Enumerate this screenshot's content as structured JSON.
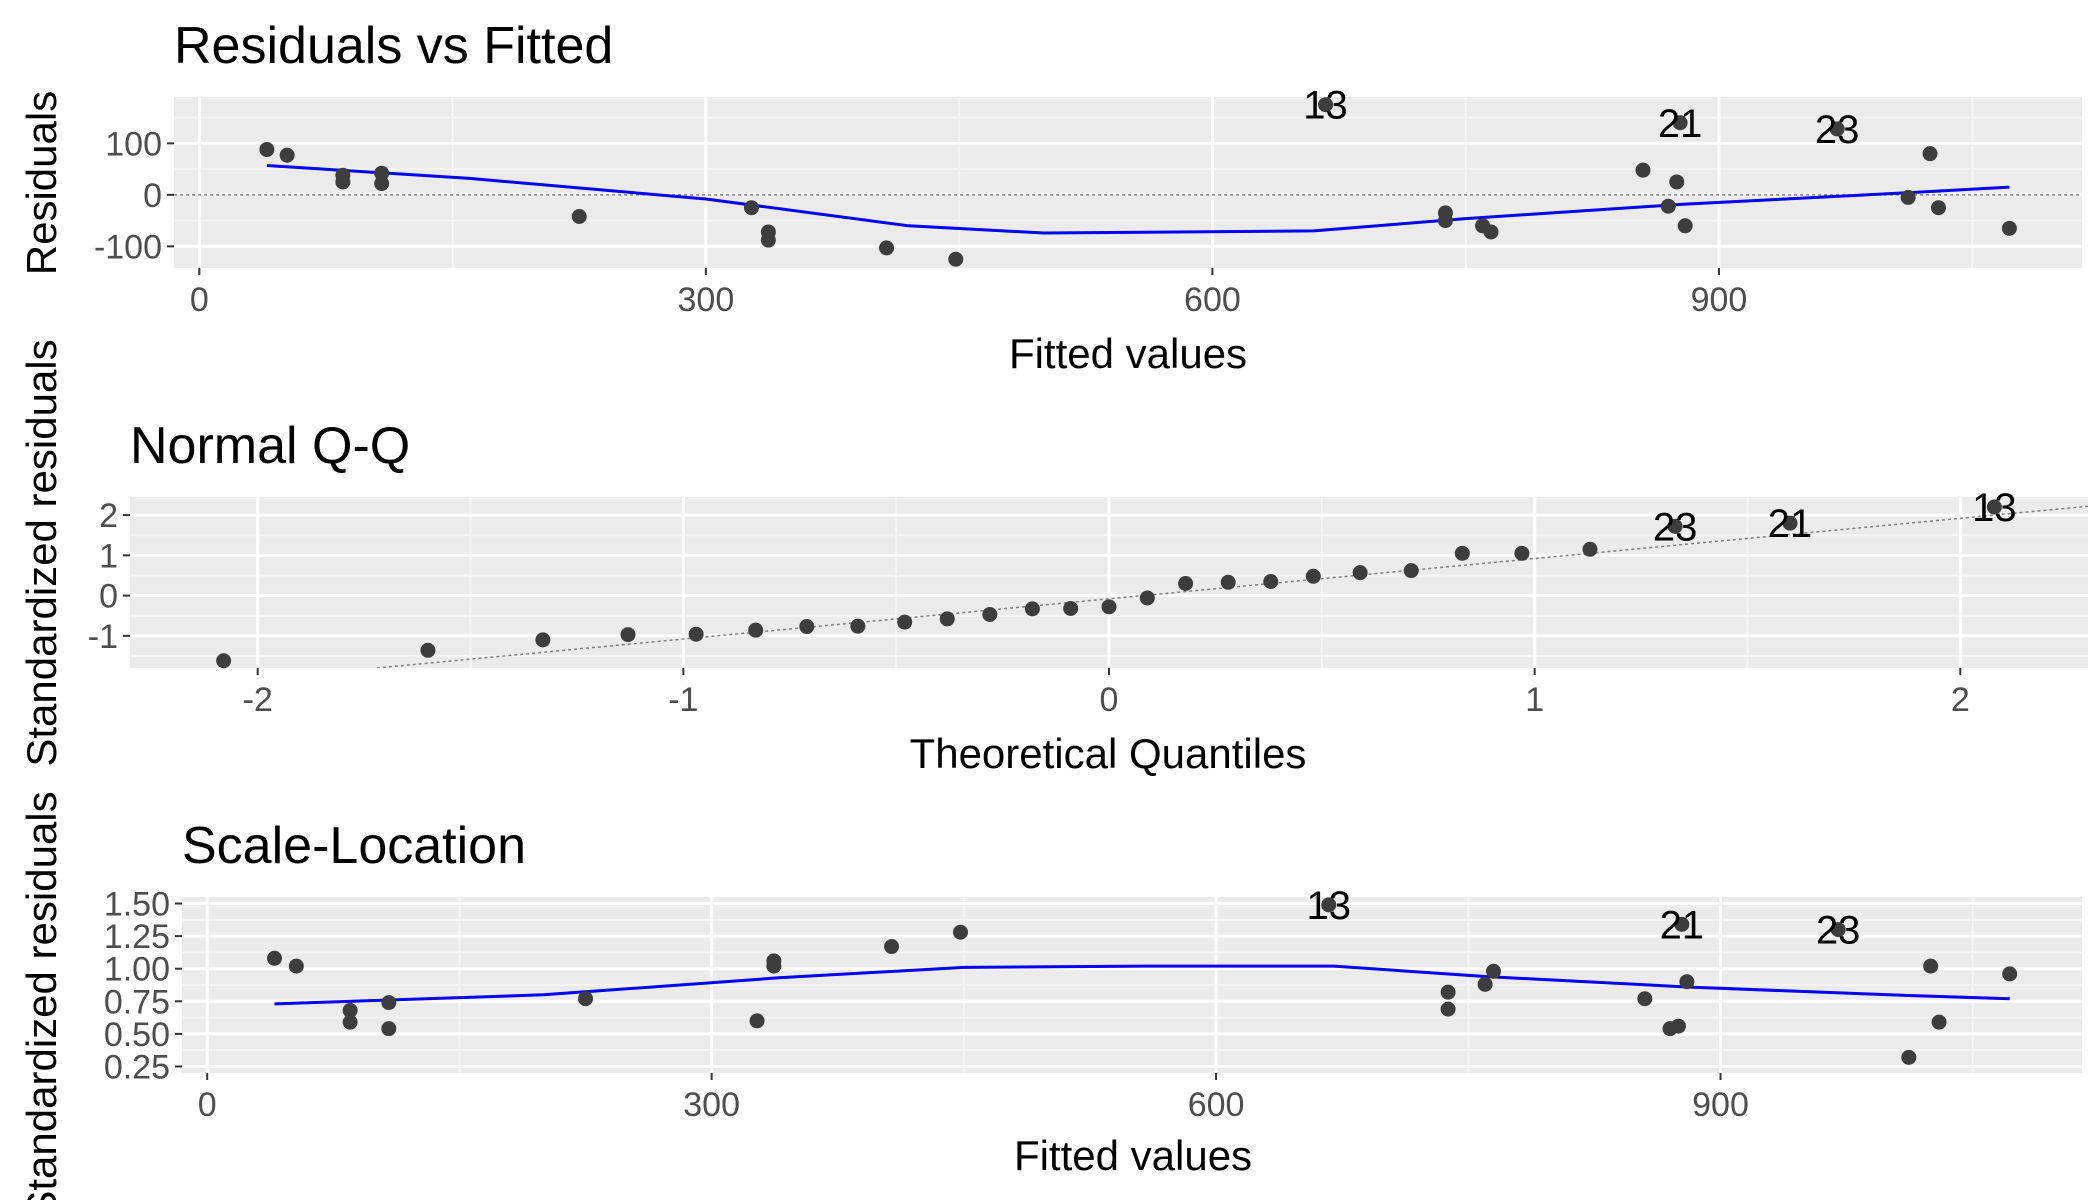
{
  "chart_data": [
    {
      "type": "scatter",
      "title": "Residuals vs Fitted",
      "xlabel": "Fitted values",
      "ylabel": "Residuals",
      "xlim": [
        -15,
        1115
      ],
      "ylim": [
        -142,
        190
      ],
      "x_ticks": [
        0,
        300,
        600,
        900
      ],
      "y_ticks": [
        -100,
        0,
        100
      ],
      "y_tick_labels": [
        "-100",
        "0",
        "100"
      ],
      "reference_line": {
        "type": "horizontal",
        "y": 0
      },
      "points": [
        {
          "x": 40,
          "y": 88
        },
        {
          "x": 52,
          "y": 77
        },
        {
          "x": 85,
          "y": 38
        },
        {
          "x": 85,
          "y": 25
        },
        {
          "x": 108,
          "y": 42
        },
        {
          "x": 108,
          "y": 22
        },
        {
          "x": 225,
          "y": -42
        },
        {
          "x": 327,
          "y": -25
        },
        {
          "x": 337,
          "y": -72
        },
        {
          "x": 337,
          "y": -88
        },
        {
          "x": 407,
          "y": -103
        },
        {
          "x": 448,
          "y": -125
        },
        {
          "x": 667,
          "y": 175
        },
        {
          "x": 738,
          "y": -35
        },
        {
          "x": 738,
          "y": -50
        },
        {
          "x": 760,
          "y": -60
        },
        {
          "x": 765,
          "y": -72
        },
        {
          "x": 855,
          "y": 48
        },
        {
          "x": 870,
          "y": -22
        },
        {
          "x": 875,
          "y": 25
        },
        {
          "x": 877,
          "y": 140
        },
        {
          "x": 880,
          "y": -60
        },
        {
          "x": 970,
          "y": 128
        },
        {
          "x": 1012,
          "y": -5
        },
        {
          "x": 1025,
          "y": 80
        },
        {
          "x": 1030,
          "y": -25
        },
        {
          "x": 1072,
          "y": -65
        }
      ],
      "smooth_line": [
        [
          40,
          57
        ],
        [
          160,
          32
        ],
        [
          300,
          -8
        ],
        [
          420,
          -60
        ],
        [
          500,
          -74
        ],
        [
          660,
          -70
        ],
        [
          750,
          -46
        ],
        [
          880,
          -18
        ],
        [
          1000,
          2
        ],
        [
          1072,
          15
        ]
      ],
      "labeled_points": [
        {
          "label": "13",
          "x": 667,
          "y": 175
        },
        {
          "label": "21",
          "x": 877,
          "y": 140
        },
        {
          "label": "23",
          "x": 970,
          "y": 128
        }
      ]
    },
    {
      "type": "scatter",
      "title": "Normal Q-Q",
      "xlabel": "Theoretical Quantiles",
      "ylabel": "Standardized residuals",
      "xlim": [
        -2.3,
        2.3
      ],
      "ylim": [
        -1.8,
        2.45
      ],
      "x_ticks": [
        -2,
        -1,
        0,
        1,
        2
      ],
      "x_tick_labels": [
        "-2",
        "-1",
        "0",
        "1",
        "2"
      ],
      "y_ticks": [
        -1,
        0,
        1,
        2
      ],
      "y_tick_labels": [
        "-1",
        "0",
        "1",
        "2"
      ],
      "reference_line": {
        "type": "diagonal",
        "from": [
          -1.72,
          -1.8
        ],
        "to": [
          2.3,
          2.22
        ]
      },
      "points": [
        {
          "x": -2.08,
          "y": -1.62
        },
        {
          "x": -1.6,
          "y": -1.36
        },
        {
          "x": -1.33,
          "y": -1.1
        },
        {
          "x": -1.13,
          "y": -0.97
        },
        {
          "x": -0.97,
          "y": -0.96
        },
        {
          "x": -0.83,
          "y": -0.86
        },
        {
          "x": -0.71,
          "y": -0.77
        },
        {
          "x": -0.59,
          "y": -0.76
        },
        {
          "x": -0.48,
          "y": -0.66
        },
        {
          "x": -0.38,
          "y": -0.58
        },
        {
          "x": -0.28,
          "y": -0.47
        },
        {
          "x": -0.18,
          "y": -0.33
        },
        {
          "x": -0.09,
          "y": -0.32
        },
        {
          "x": 0.0,
          "y": -0.28
        },
        {
          "x": 0.09,
          "y": -0.06
        },
        {
          "x": 0.18,
          "y": 0.3
        },
        {
          "x": 0.28,
          "y": 0.33
        },
        {
          "x": 0.38,
          "y": 0.35
        },
        {
          "x": 0.48,
          "y": 0.48
        },
        {
          "x": 0.59,
          "y": 0.57
        },
        {
          "x": 0.71,
          "y": 0.62
        },
        {
          "x": 0.83,
          "y": 1.05
        },
        {
          "x": 0.97,
          "y": 1.05
        },
        {
          "x": 1.13,
          "y": 1.15
        },
        {
          "x": 1.33,
          "y": 1.72
        },
        {
          "x": 1.6,
          "y": 1.8
        },
        {
          "x": 2.08,
          "y": 2.2
        }
      ],
      "labeled_points": [
        {
          "label": "23",
          "x": 1.33,
          "y": 1.72
        },
        {
          "label": "21",
          "x": 1.6,
          "y": 1.8
        },
        {
          "label": "13",
          "x": 2.08,
          "y": 2.2
        }
      ]
    },
    {
      "type": "scatter",
      "title": "Scale-Location",
      "xlabel": "Fitted values",
      "ylabel": "Standardized residuals",
      "xlim": [
        -15,
        1115
      ],
      "ylim": [
        0.2,
        1.55
      ],
      "x_ticks": [
        0,
        300,
        600,
        900
      ],
      "y_ticks": [
        0.25,
        0.5,
        0.75,
        1.0,
        1.25,
        1.5
      ],
      "y_tick_labels": [
        "0.25",
        "0.50",
        "0.75",
        "1.00",
        "1.25",
        "1.50"
      ],
      "points": [
        {
          "x": 40,
          "y": 1.08
        },
        {
          "x": 53,
          "y": 1.02
        },
        {
          "x": 85,
          "y": 0.68
        },
        {
          "x": 85,
          "y": 0.59
        },
        {
          "x": 108,
          "y": 0.74
        },
        {
          "x": 108,
          "y": 0.54
        },
        {
          "x": 225,
          "y": 0.77
        },
        {
          "x": 327,
          "y": 0.6
        },
        {
          "x": 337,
          "y": 1.06
        },
        {
          "x": 337,
          "y": 1.02
        },
        {
          "x": 407,
          "y": 1.17
        },
        {
          "x": 448,
          "y": 1.28
        },
        {
          "x": 667,
          "y": 1.49
        },
        {
          "x": 738,
          "y": 0.82
        },
        {
          "x": 738,
          "y": 0.69
        },
        {
          "x": 760,
          "y": 0.88
        },
        {
          "x": 765,
          "y": 0.98
        },
        {
          "x": 855,
          "y": 0.77
        },
        {
          "x": 870,
          "y": 0.54
        },
        {
          "x": 875,
          "y": 0.56
        },
        {
          "x": 877,
          "y": 1.34
        },
        {
          "x": 880,
          "y": 0.9
        },
        {
          "x": 970,
          "y": 1.3
        },
        {
          "x": 1012,
          "y": 0.32
        },
        {
          "x": 1025,
          "y": 1.02
        },
        {
          "x": 1030,
          "y": 0.59
        },
        {
          "x": 1072,
          "y": 0.96
        }
      ],
      "smooth_line": [
        [
          40,
          0.73
        ],
        [
          200,
          0.8
        ],
        [
          340,
          0.93
        ],
        [
          450,
          1.01
        ],
        [
          560,
          1.02
        ],
        [
          670,
          1.02
        ],
        [
          760,
          0.94
        ],
        [
          880,
          0.86
        ],
        [
          1000,
          0.8
        ],
        [
          1072,
          0.77
        ]
      ],
      "labeled_points": [
        {
          "label": "13",
          "x": 667,
          "y": 1.49
        },
        {
          "label": "21",
          "x": 877,
          "y": 1.34
        },
        {
          "label": "23",
          "x": 970,
          "y": 1.3
        }
      ]
    }
  ],
  "colors": {
    "panel_background": "#ebebeb",
    "grid_major": "#ffffff",
    "grid_minor": "#f4f4f4",
    "point": "#3d3d3d",
    "smooth": "#0000ff",
    "reference": "#7f7f7f",
    "tick_text": "#4d4d4d"
  }
}
